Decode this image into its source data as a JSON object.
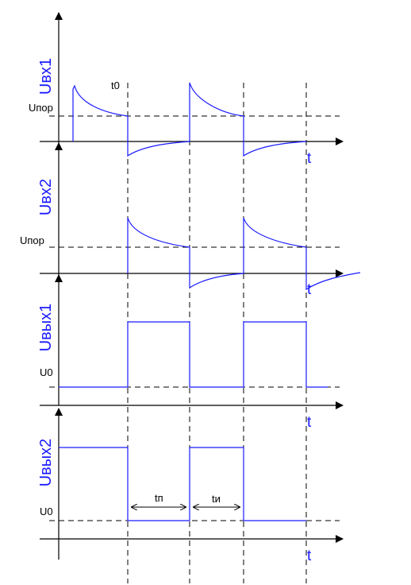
{
  "colors": {
    "signal": "#1a1aff",
    "axis": "#000000",
    "dashed": "#000000"
  },
  "plots": [
    {
      "y_label": "Uвх1",
      "x_label": "t",
      "threshold_label": "Uпор"
    },
    {
      "y_label": "Uвх2",
      "x_label": "t",
      "threshold_label": "Uпор"
    },
    {
      "y_label": "Uвых1",
      "x_label": "t",
      "threshold_label": "U0"
    },
    {
      "y_label": "Uвых2",
      "x_label": "t",
      "threshold_label": "U0"
    }
  ],
  "t0_label": "t0",
  "intervals": {
    "pause_label": "tп",
    "pulse_label": "tи"
  }
}
